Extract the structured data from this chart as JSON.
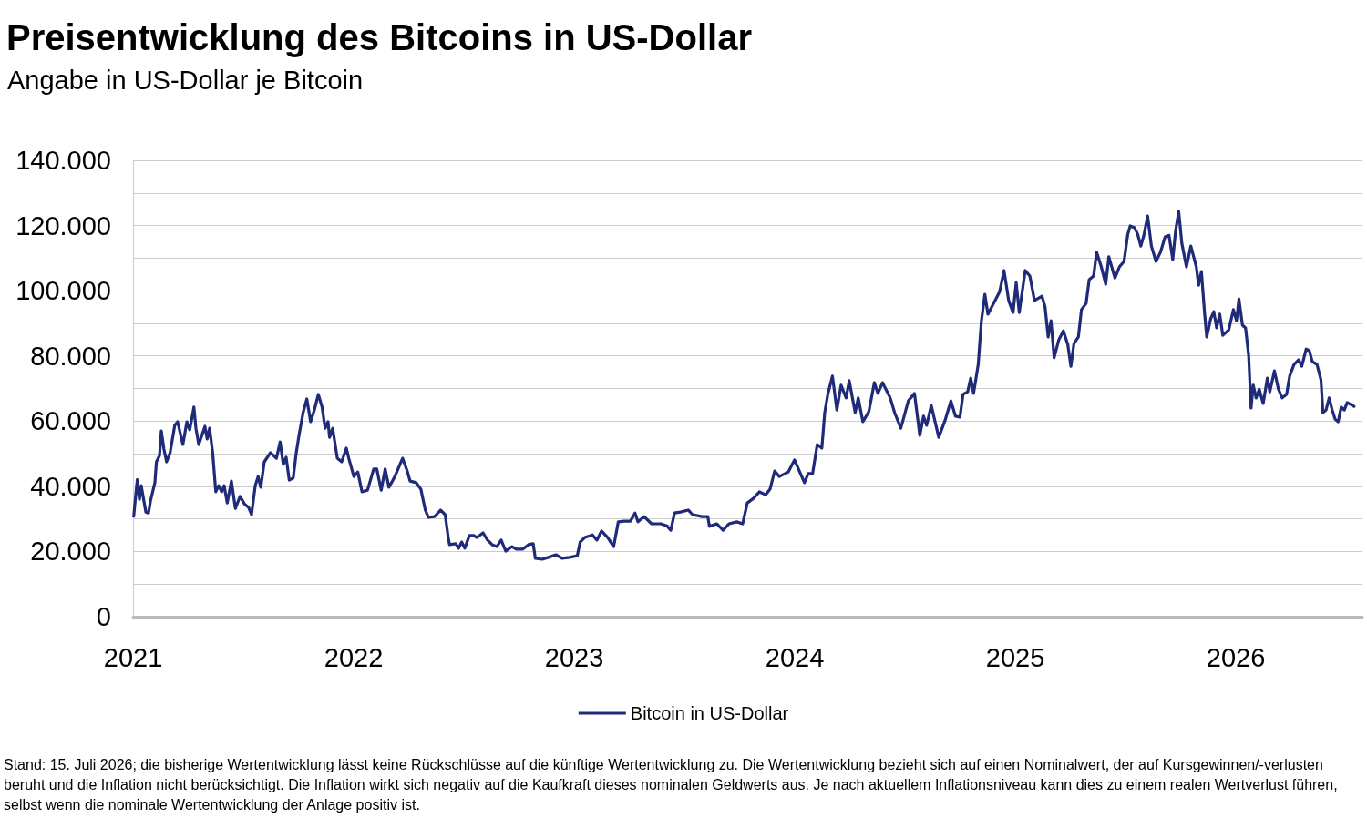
{
  "chart_data": {
    "type": "line",
    "title": "Preisentwicklung des Bitcoins in US-Dollar",
    "subtitle": "Angabe in US-Dollar je Bitcoin",
    "annotations": [
      "Stand: 15. Juli 2026; die bisherige Wertentwicklung lässt keine Rückschlüsse auf die künftige Wertentwicklung zu. Die Wertentwicklung bezieht sich auf einen Nominalwert, der auf Kursgewinnen/-verlusten beruht und die Inflation nicht berücksichtigt. Die Inflation wirkt sich negativ auf die Kaufkraft dieses nominalen Geldwerts aus. Je nach aktuellem Inflationsniveau kann dies zu einem realen Wertverlust führen, selbst wenn die nominale Wertentwicklung der Anlage positiv ist."
    ],
    "x": [
      2021.003,
      2021.019,
      2021.029,
      2021.037,
      2021.058,
      2021.07,
      2021.079,
      2021.099,
      2021.106,
      2021.12,
      2021.128,
      2021.14,
      2021.152,
      2021.168,
      2021.189,
      2021.202,
      2021.226,
      2021.244,
      2021.257,
      2021.276,
      2021.285,
      2021.298,
      2021.326,
      2021.336,
      2021.347,
      2021.361,
      2021.375,
      2021.388,
      2021.402,
      2021.413,
      2021.427,
      2021.446,
      2021.464,
      2021.485,
      2021.505,
      2021.524,
      2021.537,
      2021.554,
      2021.567,
      2021.579,
      2021.595,
      2021.609,
      2021.623,
      2021.65,
      2021.667,
      2021.681,
      2021.694,
      2021.708,
      2021.726,
      2021.74,
      2021.753,
      2021.771,
      2021.788,
      2021.805,
      2021.822,
      2021.84,
      2021.857,
      2021.871,
      2021.884,
      2021.891,
      2021.905,
      2021.926,
      2021.946,
      2021.967,
      2021.978,
      2022.001,
      2022.019,
      2022.038,
      2022.063,
      2022.091,
      2022.105,
      2022.125,
      2022.143,
      2022.16,
      2022.187,
      2022.222,
      2022.243,
      2022.256,
      2022.284,
      2022.305,
      2022.325,
      2022.339,
      2022.367,
      2022.394,
      2022.415,
      2022.429,
      2022.435,
      2022.463,
      2022.476,
      2022.49,
      2022.504,
      2022.525,
      2022.545,
      2022.559,
      2022.587,
      2022.607,
      2022.628,
      2022.649,
      2022.669,
      2022.69,
      2022.718,
      2022.738,
      2022.766,
      2022.793,
      2022.814,
      2022.824,
      2022.855,
      2022.883,
      2022.917,
      2022.945,
      2022.979,
      2023.014,
      2023.027,
      2023.048,
      2023.083,
      2023.103,
      2023.124,
      2023.152,
      2023.179,
      2023.2,
      2023.227,
      2023.255,
      2023.276,
      2023.289,
      2023.317,
      2023.351,
      2023.393,
      2023.42,
      2023.438,
      2023.455,
      2023.482,
      2023.517,
      2023.537,
      2023.579,
      2023.606,
      2023.613,
      2023.647,
      2023.675,
      2023.702,
      2023.737,
      2023.764,
      2023.785,
      2023.813,
      2023.84,
      2023.868,
      2023.888,
      2023.909,
      2023.93,
      2023.971,
      2023.999,
      2024.012,
      2024.044,
      2024.061,
      2024.081,
      2024.102,
      2024.123,
      2024.136,
      2024.15,
      2024.171,
      2024.191,
      2024.21,
      2024.233,
      2024.247,
      2024.274,
      2024.288,
      2024.309,
      2024.336,
      2024.361,
      2024.377,
      2024.398,
      2024.433,
      2024.453,
      2024.481,
      2024.515,
      2024.543,
      2024.567,
      2024.584,
      2024.598,
      2024.619,
      2024.653,
      2024.681,
      2024.708,
      2024.729,
      2024.749,
      2024.763,
      2024.784,
      2024.798,
      2024.811,
      2024.832,
      2024.846,
      2024.862,
      2024.876,
      2024.929,
      2024.949,
      2024.97,
      2024.99,
      2025.004,
      2025.018,
      2025.045,
      2025.066,
      2025.087,
      2025.121,
      2025.135,
      2025.149,
      2025.162,
      2025.176,
      2025.197,
      2025.218,
      2025.238,
      2025.252,
      2025.266,
      2025.286,
      2025.3,
      2025.321,
      2025.335,
      2025.355,
      2025.369,
      2025.39,
      2025.41,
      2025.424,
      2025.452,
      2025.472,
      2025.493,
      2025.51,
      2025.521,
      2025.541,
      2025.555,
      2025.569,
      2025.583,
      2025.6,
      2025.617,
      2025.638,
      2025.658,
      2025.679,
      2025.697,
      2025.714,
      2025.727,
      2025.741,
      2025.755,
      2025.776,
      2025.796,
      2025.821,
      2025.831,
      2025.844,
      2025.858,
      2025.868,
      2025.886,
      2025.9,
      2025.913,
      2025.927,
      2025.941,
      2025.968,
      2025.989,
      2026.003,
      2026.014,
      2026.03,
      2026.044,
      2026.058,
      2026.069,
      2026.079,
      2026.092,
      2026.106,
      2026.124,
      2026.143,
      2026.154,
      2026.175,
      2026.193,
      2026.21,
      2026.23,
      2026.244,
      2026.264,
      2026.285,
      2026.299,
      2026.319,
      2026.333,
      2026.347,
      2026.368,
      2026.386,
      2026.395,
      2026.409,
      2026.423,
      2026.437,
      2026.45,
      2026.464,
      2026.478,
      2026.492,
      2026.505,
      2026.536
    ],
    "series": [
      {
        "name": "Bitcoin in US-Dollar",
        "color": "#1f2a78",
        "values": [
          30800,
          42000,
          36000,
          40200,
          32100,
          31800,
          35500,
          41100,
          47500,
          49400,
          57000,
          51400,
          47500,
          50300,
          58700,
          59800,
          52800,
          59800,
          57300,
          64300,
          57800,
          52800,
          58400,
          54500,
          57800,
          50300,
          38300,
          40200,
          38300,
          40200,
          34900,
          41600,
          33200,
          36900,
          34600,
          33500,
          31300,
          40200,
          43000,
          39700,
          47500,
          48900,
          50300,
          48600,
          53600,
          46700,
          48900,
          41900,
          42500,
          50300,
          55900,
          62600,
          66800,
          59800,
          63400,
          68200,
          64300,
          57800,
          59800,
          55000,
          57800,
          48600,
          47500,
          51700,
          48600,
          43000,
          44400,
          38300,
          38800,
          45300,
          45300,
          38800,
          45300,
          39700,
          43000,
          48600,
          44700,
          41600,
          41100,
          39100,
          32700,
          30500,
          30700,
          32700,
          31300,
          24300,
          22100,
          22400,
          21000,
          22900,
          21000,
          24900,
          24900,
          24300,
          25700,
          23500,
          22100,
          21500,
          23500,
          20100,
          21500,
          20700,
          20700,
          22100,
          22400,
          17900,
          17600,
          18200,
          19000,
          17900,
          18200,
          18700,
          22900,
          24300,
          25100,
          23500,
          26300,
          24300,
          21500,
          29100,
          29300,
          29300,
          31800,
          29100,
          30700,
          28500,
          28500,
          27900,
          26500,
          31800,
          32100,
          32700,
          31300,
          30700,
          30700,
          27700,
          28500,
          26500,
          28500,
          29100,
          28500,
          34900,
          36300,
          38300,
          37400,
          39100,
          44700,
          43000,
          44400,
          48100,
          46100,
          41100,
          43900,
          43900,
          52800,
          51700,
          62600,
          68200,
          73800,
          63400,
          71000,
          67100,
          72400,
          62600,
          67100,
          59800,
          62900,
          71800,
          68500,
          71800,
          67100,
          62600,
          57800,
          66200,
          68500,
          55600,
          61500,
          58700,
          64800,
          55000,
          60100,
          66200,
          61500,
          61200,
          68200,
          69000,
          73200,
          68500,
          77400,
          90500,
          98900,
          92800,
          99700,
          106200,
          97000,
          93300,
          102500,
          93300,
          106200,
          104500,
          97000,
          98300,
          95000,
          85800,
          90800,
          79400,
          84900,
          87700,
          83500,
          76800,
          83800,
          85800,
          94200,
          96100,
          103400,
          104500,
          111800,
          107300,
          102000,
          110400,
          103900,
          107300,
          109000,
          117300,
          119900,
          119300,
          117300,
          113700,
          117000,
          122900,
          113700,
          109000,
          111800,
          116500,
          117000,
          109500,
          118500,
          124300,
          114600,
          107300,
          113700,
          107300,
          101700,
          105900,
          93300,
          85800,
          91400,
          93600,
          88600,
          92800,
          86300,
          88000,
          94200,
          90800,
          97500,
          89400,
          88600,
          80200,
          64000,
          71000,
          67100,
          69800,
          65400,
          73200,
          69000,
          75400,
          69800,
          67100,
          68200,
          73800,
          77400,
          78800,
          76800,
          82100,
          81600,
          78200,
          77400,
          72600,
          62600,
          63400,
          67100,
          63400,
          60600,
          59800,
          64300,
          63400,
          65700,
          64500
        ]
      }
    ],
    "xlim": [
      2021,
      2026.574
    ],
    "xticks": [
      2021,
      2022,
      2023,
      2024,
      2025,
      2026
    ],
    "ylim": [
      0,
      140000
    ],
    "yticks": [
      {
        "value": 0,
        "label": "0"
      },
      {
        "value": 10000,
        "label": null
      },
      {
        "value": 20000,
        "label": "20.000"
      },
      {
        "value": 30000,
        "label": null
      },
      {
        "value": 40000,
        "label": "40.000"
      },
      {
        "value": 50000,
        "label": null
      },
      {
        "value": 60000,
        "label": "60.000"
      },
      {
        "value": 70000,
        "label": null
      },
      {
        "value": 80000,
        "label": "80.000"
      },
      {
        "value": 90000,
        "label": null
      },
      {
        "value": 100000,
        "label": "100.000"
      },
      {
        "value": 110000,
        "label": null
      },
      {
        "value": 120000,
        "label": "120.000"
      },
      {
        "value": 130000,
        "label": null
      },
      {
        "value": 140000,
        "label": "140.000"
      }
    ],
    "grid": "y",
    "legend": "bottom",
    "marker": "none",
    "line_style": "solid"
  }
}
